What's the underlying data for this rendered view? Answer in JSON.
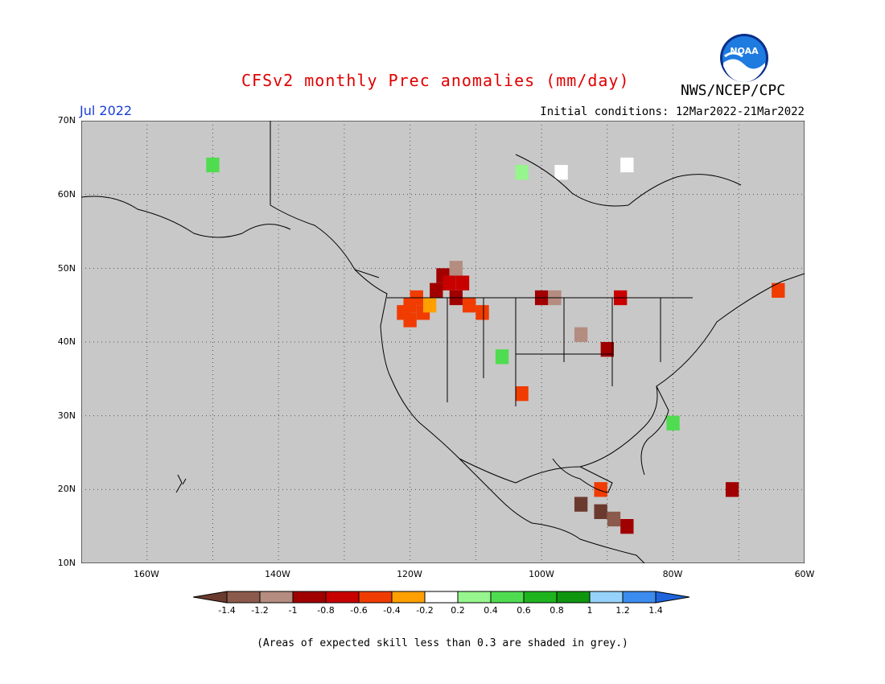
{
  "title": "CFSv2 monthly Prec anomalies (mm/day)",
  "agency": "NWS/NCEP/CPC",
  "logo_text": "NOAA",
  "month": "Jul 2022",
  "initial_conditions": "Initial conditions: 12Mar2022-21Mar2022",
  "footnote": "(Areas of expected skill less than 0.3 are shaded in grey.)",
  "map": {
    "lon_range": [
      -170,
      -60
    ],
    "lat_range": [
      10,
      70
    ],
    "background_color": "#c8c8c8",
    "lat_ticks": [
      "70N",
      "60N",
      "50N",
      "40N",
      "30N",
      "20N",
      "10N"
    ],
    "lon_ticks": [
      "160W",
      "140W",
      "120W",
      "100W",
      "80W",
      "60W"
    ],
    "grid": "dotted"
  },
  "colorbar": {
    "labels": [
      "-1.4",
      "-1.2",
      "-1",
      "-0.8",
      "-0.6",
      "-0.4",
      "-0.2",
      "0.2",
      "0.4",
      "0.6",
      "0.8",
      "1",
      "1.2",
      "1.4"
    ],
    "colors": [
      "#6b3a2e",
      "#8c5a4c",
      "#b48c80",
      "#a00000",
      "#c80000",
      "#f03c00",
      "#ffa000",
      "#ffffff",
      "#96f58c",
      "#50dc50",
      "#1eb41e",
      "#0f960f",
      "#96d2fa",
      "#3c8cf0",
      "#1e64dc"
    ]
  },
  "anomaly_cells": [
    {
      "lon": -120,
      "lat": 45,
      "v": -0.4
    },
    {
      "lon": -121,
      "lat": 44,
      "v": -0.4
    },
    {
      "lon": -122,
      "lat": 43,
      "v": -0.4
    },
    {
      "lon": -121,
      "lat": 42,
      "v": -0.4
    },
    {
      "lon": -119,
      "lat": 43,
      "v": -0.4
    },
    {
      "lon": -118,
      "lat": 44,
      "v": -0.2
    },
    {
      "lon": -117,
      "lat": 46,
      "v": -0.8
    },
    {
      "lon": -116,
      "lat": 48,
      "v": -0.8
    },
    {
      "lon": -115,
      "lat": 47,
      "v": -0.6
    },
    {
      "lon": -114,
      "lat": 49,
      "v": -1.0
    },
    {
      "lon": -113,
      "lat": 47,
      "v": -0.6
    },
    {
      "lon": -114,
      "lat": 45,
      "v": -0.8
    },
    {
      "lon": -112,
      "lat": 44,
      "v": -0.4
    },
    {
      "lon": -110,
      "lat": 43,
      "v": -0.4
    },
    {
      "lon": -101,
      "lat": 45,
      "v": -0.8
    },
    {
      "lon": -99,
      "lat": 45,
      "v": -1.0
    },
    {
      "lon": -95,
      "lat": 40,
      "v": -1.0
    },
    {
      "lon": -91,
      "lat": 38,
      "v": -0.8
    },
    {
      "lon": -89,
      "lat": 45,
      "v": -0.6
    },
    {
      "lon": -107,
      "lat": 37,
      "v": 0.6
    },
    {
      "lon": -104,
      "lat": 32,
      "v": -0.4
    },
    {
      "lon": -81,
      "lat": 28,
      "v": 0.6
    },
    {
      "lon": -92,
      "lat": 19,
      "v": -0.4
    },
    {
      "lon": -95,
      "lat": 17,
      "v": -1.4
    },
    {
      "lon": -92,
      "lat": 16,
      "v": -1.4
    },
    {
      "lon": -90,
      "lat": 15,
      "v": -1.2
    },
    {
      "lon": -88,
      "lat": 14,
      "v": -0.8
    },
    {
      "lon": -72,
      "lat": 19,
      "v": -0.8
    },
    {
      "lon": -65,
      "lat": 46,
      "v": -0.4
    },
    {
      "lon": -151,
      "lat": 63,
      "v": 0.6
    },
    {
      "lon": -104,
      "lat": 62,
      "v": 0.4
    },
    {
      "lon": -98,
      "lat": 62,
      "v": 0.2
    },
    {
      "lon": -88,
      "lat": 63,
      "v": 0.2
    }
  ]
}
